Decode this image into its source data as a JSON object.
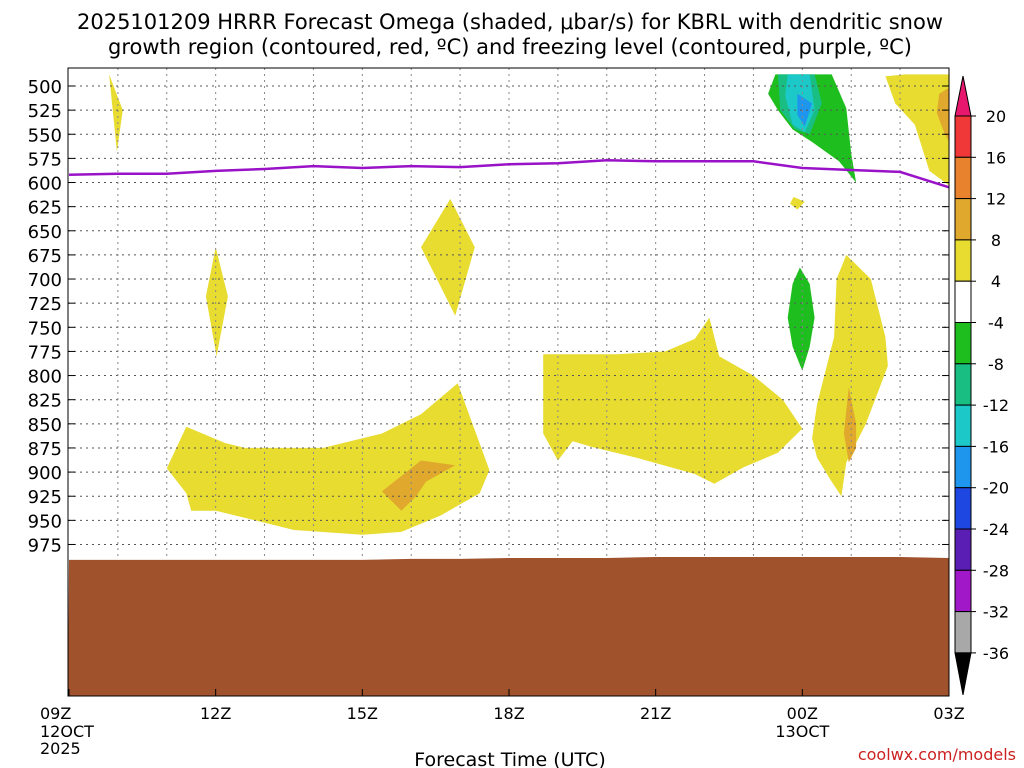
{
  "chart_data": {
    "type": "contour-heatmap",
    "title_line1": "2025101209 HRRR Forecast Omega (shaded, μbar/s) for KBRL with dendritic snow",
    "title_line2": "growth region (contoured, red, ºC) and freezing level (contoured, purple, ºC)",
    "xlabel": "Forecast Time (UTC)",
    "credit": "coolwx.com/models",
    "x_range_hours": [
      0,
      18
    ],
    "x_ticks": [
      {
        "h": 0,
        "label": "09Z",
        "sub1": "12OCT",
        "sub2": "2025"
      },
      {
        "h": 3,
        "label": "12Z",
        "sub1": "",
        "sub2": ""
      },
      {
        "h": 6,
        "label": "15Z",
        "sub1": "",
        "sub2": ""
      },
      {
        "h": 9,
        "label": "18Z",
        "sub1": "",
        "sub2": ""
      },
      {
        "h": 12,
        "label": "21Z",
        "sub1": "",
        "sub2": ""
      },
      {
        "h": 15,
        "label": "00Z",
        "sub1": "13OCT",
        "sub2": ""
      },
      {
        "h": 18,
        "label": "03Z",
        "sub1": "",
        "sub2": ""
      }
    ],
    "y_ticks_hpa": [
      "500",
      "525",
      "550",
      "575",
      "600",
      "625",
      "650",
      "675",
      "700",
      "725",
      "750",
      "775",
      "800",
      "825",
      "850",
      "875",
      "900",
      "925",
      "950",
      "975"
    ],
    "colorbar": {
      "labels": [
        "20",
        "16",
        "12",
        "8",
        "4",
        "-4",
        "-8",
        "-12",
        "-16",
        "-20",
        "-24",
        "-28",
        "-32",
        "-36"
      ],
      "colors": [
        "#e8176e",
        "#f03838",
        "#e8822c",
        "#e0a82c",
        "#e8dc30",
        "#ffffff",
        "#1ebe1e",
        "#18be82",
        "#1cc8c8",
        "#1e96ee",
        "#1e46e0",
        "#5a1eb4",
        "#a018c8",
        "#a8a8a8"
      ]
    },
    "freezing_level_hpa": [
      [
        0,
        592
      ],
      [
        1,
        591
      ],
      [
        2,
        591
      ],
      [
        3,
        588
      ],
      [
        4,
        586
      ],
      [
        5,
        583
      ],
      [
        6,
        585
      ],
      [
        7,
        583
      ],
      [
        8,
        584
      ],
      [
        9,
        581
      ],
      [
        10,
        580
      ],
      [
        11,
        577
      ],
      [
        12,
        578
      ],
      [
        13,
        578
      ],
      [
        14,
        578
      ],
      [
        15,
        585
      ],
      [
        16,
        587
      ],
      [
        17,
        589
      ],
      [
        18,
        605
      ]
    ],
    "shaded_regions": [
      {
        "name": "omega-pos-4-a",
        "level": "4",
        "color": "#e8dc30",
        "pts": [
          [
            0.82,
            488
          ],
          [
            1.1,
            525
          ],
          [
            0.98,
            568
          ]
        ]
      },
      {
        "name": "omega-pos-4-b",
        "level": "4",
        "color": "#e8dc30",
        "pts": [
          [
            3.0,
            667
          ],
          [
            3.25,
            718
          ],
          [
            3.02,
            780
          ],
          [
            2.8,
            718
          ]
        ]
      },
      {
        "name": "omega-pos-4-c",
        "level": "4",
        "color": "#e8dc30",
        "pts": [
          [
            7.8,
            617
          ],
          [
            8.3,
            667
          ],
          [
            7.9,
            738
          ],
          [
            7.2,
            667
          ]
        ]
      },
      {
        "name": "omega-pos-4-d",
        "level": "4",
        "color": "#e8dc30",
        "pts": [
          [
            2.4,
            853
          ],
          [
            3.2,
            870
          ],
          [
            3.6,
            875
          ],
          [
            5.2,
            875
          ],
          [
            6.4,
            860
          ],
          [
            7.2,
            840
          ],
          [
            7.95,
            808
          ],
          [
            8.6,
            898
          ],
          [
            8.4,
            922
          ],
          [
            7.6,
            945
          ],
          [
            6.8,
            962
          ],
          [
            6.0,
            965
          ],
          [
            4.6,
            960
          ],
          [
            3.8,
            950
          ],
          [
            3.0,
            940
          ],
          [
            2.5,
            940
          ],
          [
            2.4,
            922
          ],
          [
            2.0,
            896
          ]
        ]
      },
      {
        "name": "omega-pos-8-a",
        "level": "8",
        "color": "#e0a82c",
        "pts": [
          [
            6.4,
            920
          ],
          [
            6.9,
            900
          ],
          [
            7.2,
            888
          ],
          [
            7.9,
            893
          ],
          [
            7.3,
            910
          ],
          [
            7.1,
            925
          ],
          [
            6.8,
            940
          ]
        ]
      },
      {
        "name": "omega-pos-4-e",
        "level": "4",
        "color": "#e8dc30",
        "pts": [
          [
            9.7,
            778
          ],
          [
            11.2,
            778
          ],
          [
            12.2,
            775
          ],
          [
            12.8,
            762
          ],
          [
            13.1,
            740
          ],
          [
            13.3,
            780
          ],
          [
            14.0,
            800
          ],
          [
            14.6,
            825
          ],
          [
            15.0,
            855
          ],
          [
            14.5,
            880
          ],
          [
            13.8,
            895
          ],
          [
            13.2,
            912
          ],
          [
            12.8,
            902
          ],
          [
            11.6,
            885
          ],
          [
            10.7,
            874
          ],
          [
            10.3,
            868
          ],
          [
            10.0,
            888
          ],
          [
            9.7,
            860
          ],
          [
            9.7,
            815
          ]
        ]
      },
      {
        "name": "omega-pos-4-f",
        "level": "4",
        "color": "#e8dc30",
        "pts": [
          [
            14.82,
            615
          ],
          [
            15.05,
            620
          ],
          [
            14.9,
            628
          ],
          [
            14.75,
            622
          ]
        ]
      },
      {
        "name": "omega-pos-4-g",
        "level": "4",
        "color": "#e8dc30",
        "pts": [
          [
            15.9,
            675
          ],
          [
            16.4,
            700
          ],
          [
            16.7,
            760
          ],
          [
            16.75,
            790
          ],
          [
            16.3,
            850
          ],
          [
            15.9,
            890
          ],
          [
            15.8,
            925
          ],
          [
            15.6,
            910
          ],
          [
            15.3,
            885
          ],
          [
            15.2,
            865
          ],
          [
            15.3,
            830
          ],
          [
            15.65,
            760
          ],
          [
            15.7,
            700
          ]
        ]
      },
      {
        "name": "omega-pos-8-b",
        "level": "8",
        "color": "#e0a82c",
        "pts": [
          [
            15.95,
            812
          ],
          [
            16.1,
            850
          ],
          [
            16.1,
            875
          ],
          [
            15.95,
            890
          ],
          [
            15.85,
            860
          ]
        ]
      },
      {
        "name": "omega-pos-4-h",
        "level": "4",
        "color": "#e8dc30",
        "pts": [
          [
            17.1,
            488
          ],
          [
            18.0,
            488
          ],
          [
            18.0,
            603
          ],
          [
            17.6,
            588
          ],
          [
            17.3,
            540
          ],
          [
            16.9,
            518
          ],
          [
            16.7,
            490
          ]
        ]
      },
      {
        "name": "omega-pos-8-c",
        "level": "8",
        "color": "#e0a82c",
        "pts": [
          [
            17.8,
            508
          ],
          [
            18.0,
            502
          ],
          [
            18.0,
            558
          ],
          [
            17.9,
            548
          ],
          [
            17.75,
            528
          ]
        ]
      },
      {
        "name": "omega-neg-4-a",
        "level": "-4",
        "color": "#1ebe1e",
        "pts": [
          [
            14.45,
            488
          ],
          [
            15.6,
            488
          ],
          [
            15.9,
            523
          ],
          [
            16.0,
            570
          ],
          [
            16.1,
            600
          ],
          [
            15.75,
            578
          ],
          [
            15.2,
            558
          ],
          [
            14.8,
            545
          ],
          [
            14.5,
            525
          ],
          [
            14.3,
            508
          ]
        ]
      },
      {
        "name": "omega-neg-8-a",
        "level": "-8",
        "color": "#18be82",
        "pts": [
          [
            14.5,
            488
          ],
          [
            15.25,
            488
          ],
          [
            15.4,
            518
          ],
          [
            15.15,
            550
          ],
          [
            14.85,
            545
          ],
          [
            14.55,
            525
          ]
        ]
      },
      {
        "name": "omega-neg-12-a",
        "level": "-12",
        "color": "#1cc8c8",
        "pts": [
          [
            14.7,
            488
          ],
          [
            15.15,
            488
          ],
          [
            15.25,
            525
          ],
          [
            15.05,
            548
          ],
          [
            14.8,
            540
          ],
          [
            14.65,
            510
          ]
        ]
      },
      {
        "name": "omega-neg-16-a",
        "level": "-16",
        "color": "#1e96ee",
        "pts": [
          [
            14.9,
            508
          ],
          [
            15.2,
            518
          ],
          [
            15.05,
            542
          ],
          [
            14.9,
            530
          ]
        ]
      },
      {
        "name": "omega-neg-4-b",
        "level": "-4",
        "color": "#1ebe1e",
        "pts": [
          [
            14.95,
            688
          ],
          [
            15.15,
            705
          ],
          [
            15.25,
            740
          ],
          [
            15.15,
            770
          ],
          [
            15.0,
            795
          ],
          [
            14.8,
            770
          ],
          [
            14.7,
            740
          ],
          [
            14.8,
            705
          ]
        ]
      }
    ],
    "ground": [
      [
        0,
        991
      ],
      [
        2,
        991
      ],
      [
        4,
        991
      ],
      [
        6,
        991
      ],
      [
        7,
        990
      ],
      [
        8,
        990
      ],
      [
        9,
        989
      ],
      [
        10,
        989
      ],
      [
        11,
        989
      ],
      [
        12,
        988
      ],
      [
        13,
        988
      ],
      [
        14,
        988
      ],
      [
        15,
        988
      ],
      [
        16,
        988
      ],
      [
        17,
        988
      ],
      [
        18,
        989
      ]
    ]
  }
}
